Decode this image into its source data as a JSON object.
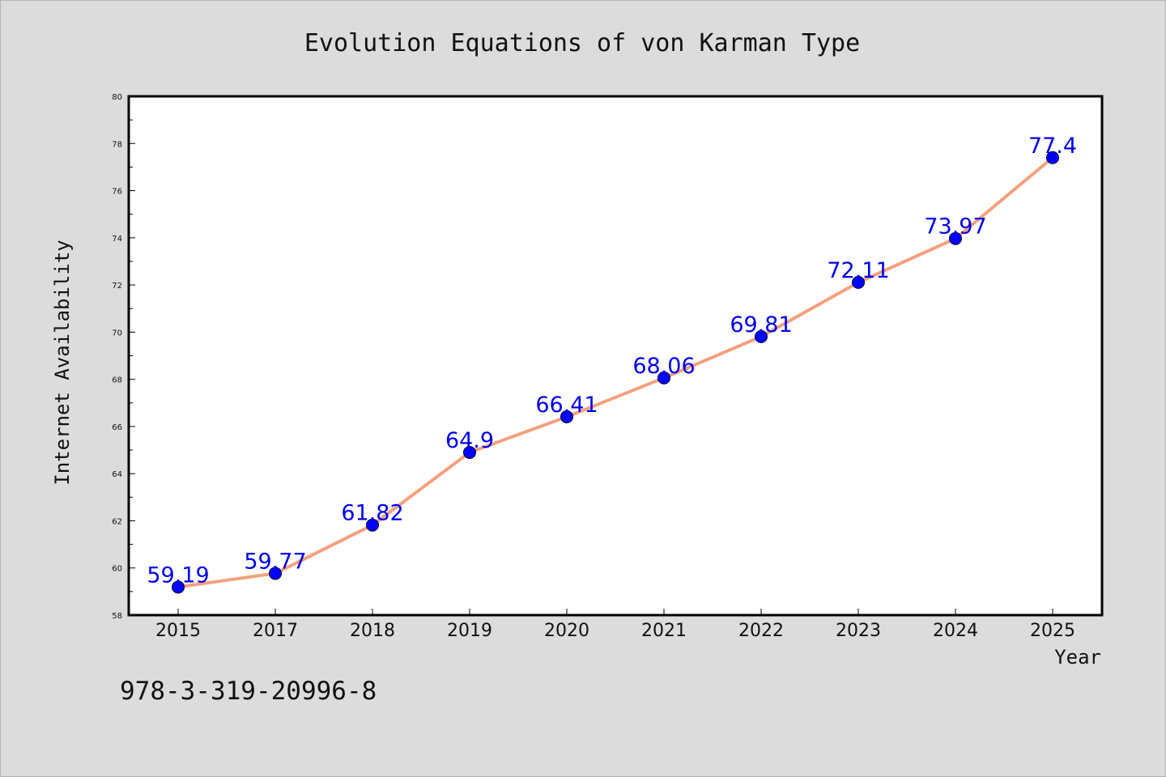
{
  "chart_data": {
    "type": "line",
    "title": "Evolution Equations of von Karman Type",
    "xlabel": "Year",
    "ylabel": "Internet Availability",
    "categories": [
      "2015",
      "2017",
      "2018",
      "2019",
      "2020",
      "2021",
      "2022",
      "2023",
      "2024",
      "2025"
    ],
    "series": [
      {
        "values": [
          59.19,
          59.77,
          61.82,
          64.9,
          66.41,
          68.06,
          69.81,
          72.11,
          73.97,
          77.4
        ],
        "data_labels": [
          "59.19",
          "59.77",
          "61.82",
          "64.9",
          "66.41",
          "68.06",
          "69.81",
          "72.11",
          "73.97",
          "77.4"
        ],
        "line_color": "#f4a07e",
        "marker_color": "#0000ff"
      }
    ],
    "ylim": [
      58,
      80
    ],
    "yticks": [
      58,
      60,
      62,
      64,
      66,
      68,
      70,
      72,
      74,
      76,
      78,
      80
    ],
    "grid": false
  },
  "annotation": "978-3-319-20996-8"
}
